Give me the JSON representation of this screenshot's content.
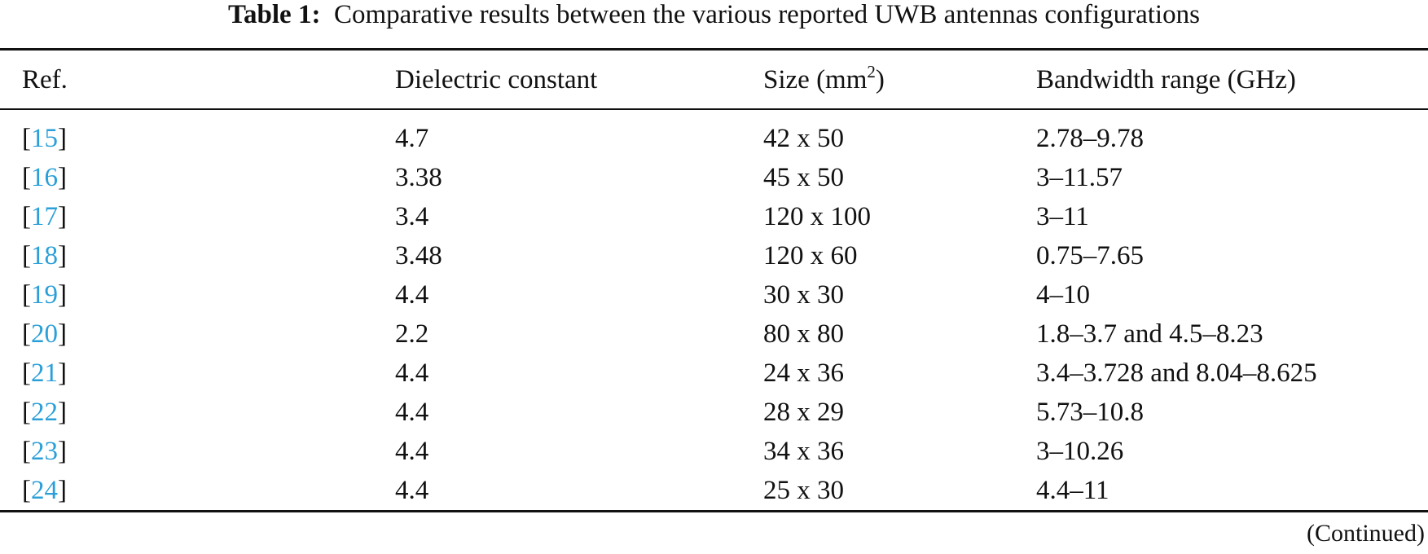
{
  "caption": {
    "label": "Table 1:",
    "text": "Comparative results between the various reported UWB antennas configurations"
  },
  "table": {
    "headers": [
      "Ref.",
      "Dielectric constant",
      [
        "Size (mm",
        "2",
        ")"
      ],
      "Bandwidth range (GHz)"
    ],
    "rows": [
      [
        [
          "[",
          "15",
          "]"
        ],
        "4.7",
        "42 x 50",
        "2.78–9.78"
      ],
      [
        [
          "[",
          "16",
          "]"
        ],
        "3.38",
        "45 x 50",
        "3–11.57"
      ],
      [
        [
          "[",
          "17",
          "]"
        ],
        "3.4",
        "120 x 100",
        "3–11"
      ],
      [
        [
          "[",
          "18",
          "]"
        ],
        "3.48",
        "120 x 60",
        "0.75–7.65"
      ],
      [
        [
          "[",
          "19",
          "]"
        ],
        "4.4",
        "30 x 30",
        "4–10"
      ],
      [
        [
          "[",
          "20",
          "]"
        ],
        "2.2",
        "80 x 80",
        "1.8–3.7 and 4.5–8.23"
      ],
      [
        [
          "[",
          "21",
          "]"
        ],
        "4.4",
        "24 x 36",
        "3.4–3.728 and 8.04–8.625"
      ],
      [
        [
          "[",
          "22",
          "]"
        ],
        "4.4",
        "28 x 29",
        "5.73–10.8"
      ],
      [
        [
          "[",
          "23",
          "]"
        ],
        "4.4",
        "34 x 36",
        "3–10.26"
      ],
      [
        [
          "[",
          "24",
          "]"
        ],
        "4.4",
        "25 x 30",
        "4.4–11"
      ]
    ]
  },
  "footer": "(Continued)"
}
